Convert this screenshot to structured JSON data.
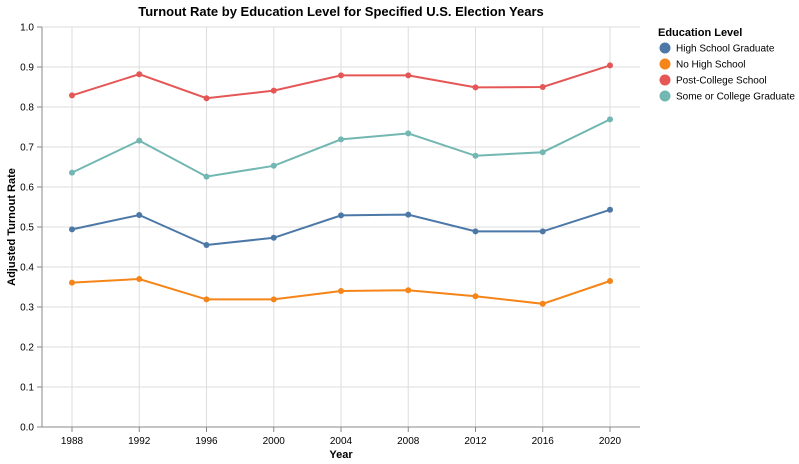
{
  "chart_data": {
    "type": "line",
    "title": "Turnout Rate by Education Level for Specified U.S. Election Years",
    "xlabel": "Year",
    "ylabel": "Adjusted Turnout Rate",
    "x": [
      1988,
      1992,
      1996,
      2000,
      2004,
      2008,
      2012,
      2016,
      2020
    ],
    "ylim": [
      0,
      1.0
    ],
    "yticks": [
      "0.0",
      "0.1",
      "0.2",
      "0.3",
      "0.4",
      "0.5",
      "0.6",
      "0.7",
      "0.8",
      "0.9",
      "1.0"
    ],
    "grid": true,
    "legend_title": "Education Level",
    "legend_position": "right",
    "series": [
      {
        "name": "High School Graduate",
        "color": "#4c78a8",
        "values": [
          0.494,
          0.53,
          0.455,
          0.473,
          0.529,
          0.531,
          0.489,
          0.489,
          0.543
        ]
      },
      {
        "name": "No High School",
        "color": "#f58518",
        "values": [
          0.361,
          0.37,
          0.319,
          0.319,
          0.34,
          0.342,
          0.327,
          0.308,
          0.365
        ]
      },
      {
        "name": "Post-College School",
        "color": "#e45756",
        "values": [
          0.829,
          0.882,
          0.822,
          0.841,
          0.879,
          0.879,
          0.849,
          0.85,
          0.904
        ]
      },
      {
        "name": "Some or College Graduate",
        "color": "#72b7b2",
        "values": [
          0.636,
          0.716,
          0.626,
          0.653,
          0.719,
          0.734,
          0.678,
          0.687,
          0.769
        ]
      }
    ]
  }
}
